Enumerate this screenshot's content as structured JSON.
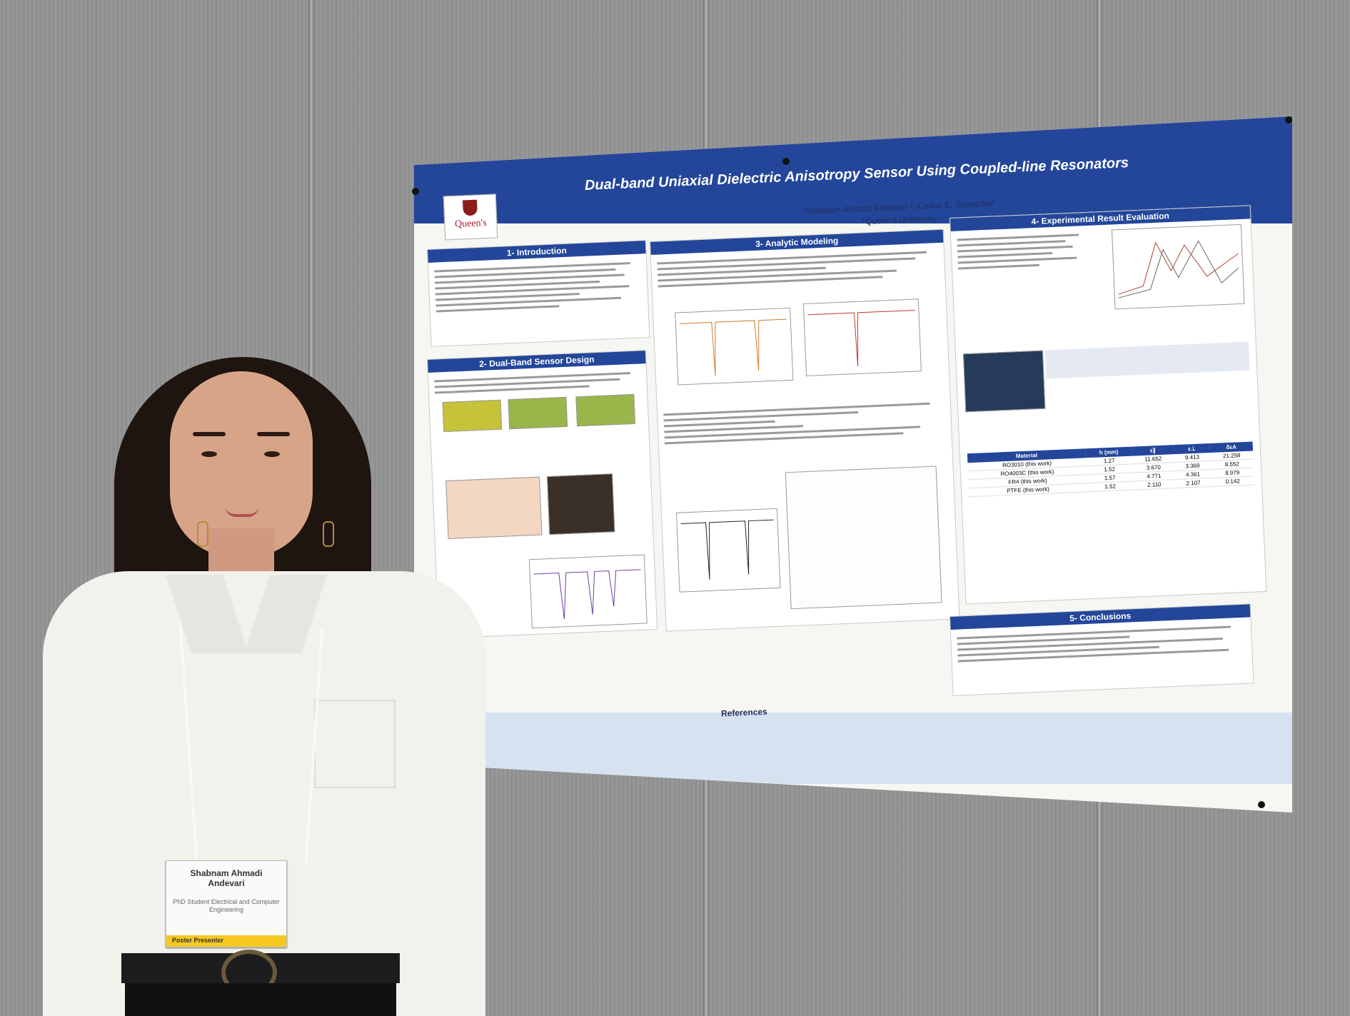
{
  "poster": {
    "title": "Dual-band Uniaxial Dielectric Anisotropy Sensor Using Coupled-line Resonators",
    "authors": "Shabnam Ahmadi Andevari ¹, Carlos E. Saavedra¹",
    "affiliation": "¹Queen's University",
    "logo_text": "Queen's",
    "sections": {
      "intro": "1- Introduction",
      "design": "2- Dual-Band Sensor Design",
      "analytic": "3- Analytic Modeling",
      "results": "4- Experimental Result Evaluation",
      "conclusions": "5- Conclusions",
      "references": "References"
    },
    "table2": {
      "headers": [
        "Material",
        "h (mm)",
        "ε∥",
        "ε⊥",
        "δεA"
      ],
      "rows": [
        [
          "RO3010 (this work)",
          "1.27",
          "11.652",
          "9.413",
          "21.258"
        ],
        [
          "RO4003C (this work)",
          "1.52",
          "3.670",
          "3.369",
          "8.552"
        ],
        [
          "FR4 (this work)",
          "1.57",
          "4.771",
          "4.361",
          "8.979"
        ],
        [
          "PTFE (this work)",
          "1.52",
          "2.110",
          "2.107",
          "0.142"
        ]
      ]
    }
  },
  "badge": {
    "name": "Shabnam Ahmadi Andevari",
    "role": "PhD Student Electrical and Computer Engineering",
    "tag": "Poster Presenter"
  }
}
